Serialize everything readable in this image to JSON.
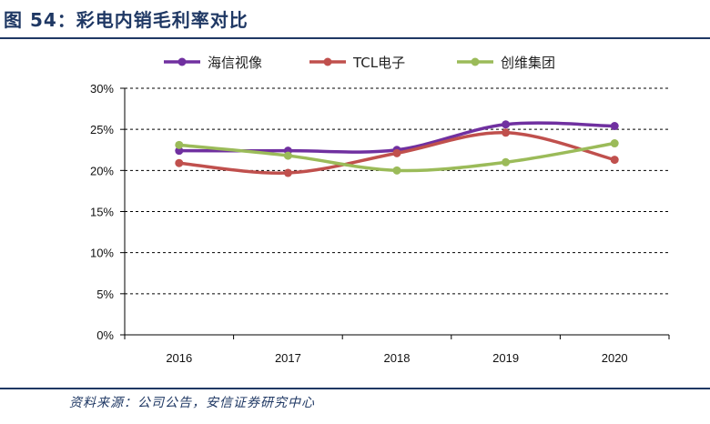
{
  "figure": {
    "title": "图 54：彩电内销毛利率对比",
    "source": "资料来源：公司公告，安信证券研究中心"
  },
  "chart_data": {
    "type": "line",
    "categories": [
      "2016",
      "2017",
      "2018",
      "2019",
      "2020"
    ],
    "ylim": [
      0,
      30
    ],
    "yticks": [
      "0%",
      "5%",
      "10%",
      "15%",
      "20%",
      "25%",
      "30%"
    ],
    "y_unit": "%",
    "grid": true,
    "legend_position": "top",
    "series": [
      {
        "name": "海信视像",
        "color": "#7030a0",
        "values": [
          22.4,
          22.4,
          22.5,
          25.6,
          25.4
        ]
      },
      {
        "name": "TCL电子",
        "color": "#c0504d",
        "values": [
          20.9,
          19.7,
          22.1,
          24.6,
          21.3
        ]
      },
      {
        "name": "创维集团",
        "color": "#9bbb59",
        "values": [
          23.1,
          21.8,
          20.0,
          21.0,
          23.3
        ]
      }
    ]
  }
}
